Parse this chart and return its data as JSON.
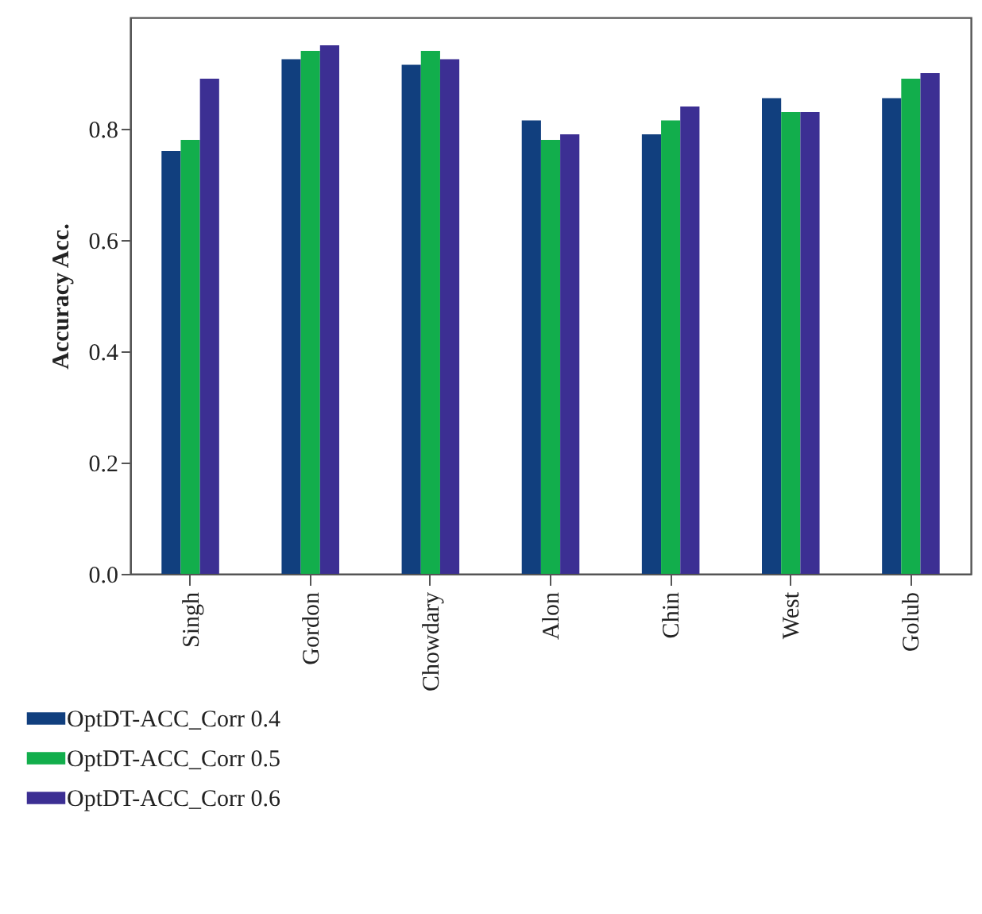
{
  "chart_data": {
    "type": "bar",
    "ylabel": "Accuracy Acc.",
    "categories": [
      "Singh",
      "Gordon",
      "Chowdary",
      "Alon",
      "Chin",
      "West",
      "Golub"
    ],
    "series": [
      {
        "name": "OptDT-ACC_Corr 0.4",
        "color": "#113f7e",
        "values": [
          0.76,
          0.925,
          0.915,
          0.815,
          0.79,
          0.855,
          0.855
        ]
      },
      {
        "name": "OptDT-ACC_Corr 0.5",
        "color": "#12ae4c",
        "values": [
          0.78,
          0.94,
          0.94,
          0.78,
          0.815,
          0.83,
          0.89
        ]
      },
      {
        "name": "OptDT-ACC_Corr 0.6",
        "color": "#3c2f93",
        "values": [
          0.89,
          0.95,
          0.925,
          0.79,
          0.84,
          0.83,
          0.9
        ]
      }
    ],
    "ylim": [
      0,
      1
    ],
    "yticks": [
      {
        "value": 0,
        "label": "0.0"
      },
      {
        "value": 0.2,
        "label": "0.2"
      },
      {
        "value": 0.4,
        "label": "0.4"
      },
      {
        "value": 0.6,
        "label": "0.6"
      },
      {
        "value": 0.8,
        "label": "0.8"
      }
    ],
    "grid": false,
    "legend": "bottom left"
  }
}
